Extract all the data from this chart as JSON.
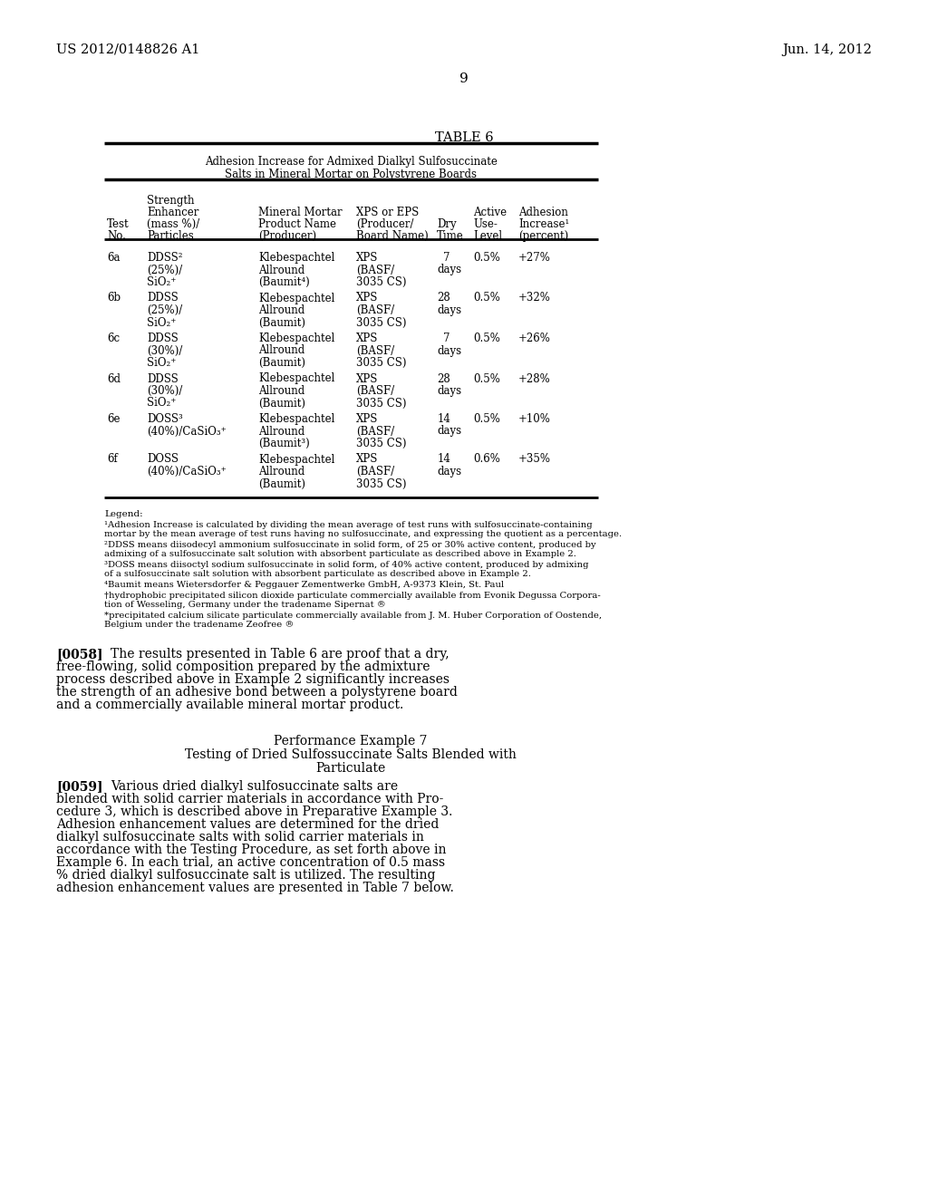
{
  "background_color": "#ffffff",
  "header_left": "US 2012/0148826 A1",
  "header_right": "Jun. 14, 2012",
  "page_number": "9",
  "table_title": "TABLE 6",
  "table_subtitle1": "Adhesion Increase for Admixed Dialkyl Sulfosuccinate",
  "table_subtitle2": "Salts in Mineral Mortar on Polystyrene Boards",
  "legend_title": "Legend:",
  "para_0058_label": "[0058]",
  "section_title1": "Performance Example 7",
  "section_title2": "Testing of Dried Sulfossuccinate Salts Blended with",
  "section_title3": "Particulate",
  "para_0059_label": "[0059]"
}
